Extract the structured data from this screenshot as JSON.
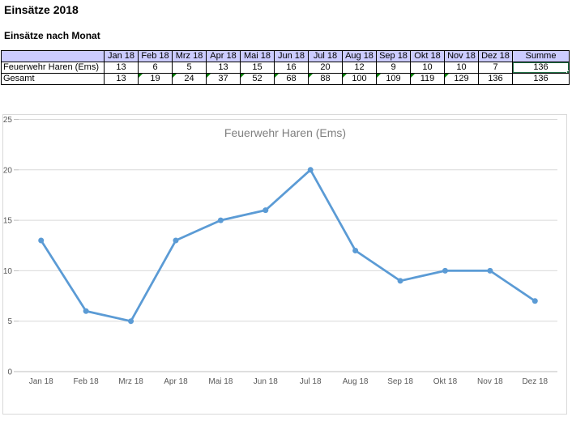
{
  "app": {
    "title": "Einsätze 2018",
    "subtitle": "Einsätze nach Monat"
  },
  "table": {
    "corner_label": "",
    "month_headers": [
      "Jan 18",
      "Feb 18",
      "Mrz 18",
      "Apr 18",
      "Mai 18",
      "Jun 18",
      "Jul 18",
      "Aug 18",
      "Sep 18",
      "Okt 18",
      "Nov 18",
      "Dez 18"
    ],
    "sum_header": "Summe",
    "rows": [
      {
        "label": "Feuerwehr Haren (Ems)",
        "values": [
          13,
          6,
          5,
          13,
          15,
          16,
          20,
          12,
          9,
          10,
          10,
          7
        ],
        "sum": 136,
        "selected_sum": true,
        "error_flags": []
      },
      {
        "label": "Gesamt",
        "values": [
          13,
          19,
          24,
          37,
          52,
          68,
          88,
          100,
          109,
          119,
          129,
          136
        ],
        "sum": 136,
        "selected_sum": false,
        "error_flags": [
          1,
          2,
          3,
          4,
          5,
          6,
          7,
          8,
          9,
          10
        ]
      }
    ],
    "colors": {
      "header_bg": "#CCCCFF",
      "cell_border": "#000000",
      "selection": "#217346",
      "error_indicator": "#008000"
    }
  },
  "chart_data": {
    "type": "line",
    "title": "Feuerwehr Haren (Ems)",
    "categories": [
      "Jan 18",
      "Feb 18",
      "Mrz 18",
      "Apr 18",
      "Mai 18",
      "Jun 18",
      "Jul 18",
      "Aug 18",
      "Sep 18",
      "Okt 18",
      "Nov 18",
      "Dez 18"
    ],
    "series": [
      {
        "name": "Feuerwehr Haren (Ems)",
        "values": [
          13,
          6,
          5,
          13,
          15,
          16,
          20,
          12,
          9,
          10,
          10,
          7
        ]
      }
    ],
    "xlabel": "",
    "ylabel": "",
    "ylim": [
      0,
      25
    ],
    "yticks": [
      0,
      5,
      10,
      15,
      20,
      25
    ],
    "grid": true,
    "legend": "none",
    "marker": "circle",
    "colors": {
      "line": "#5B9BD5",
      "title_text": "#7F7F7F",
      "axis_text": "#595959",
      "gridline": "#D9D9D9",
      "axis_line": "#BFBFBF",
      "chart_border": "#D9D9D9"
    }
  }
}
